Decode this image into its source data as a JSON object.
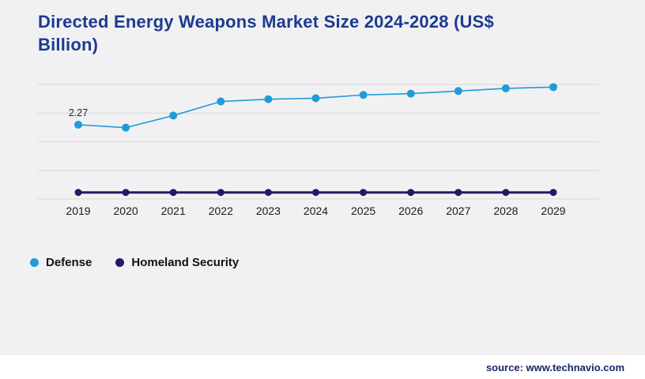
{
  "header": {
    "title": "Directed Energy Weapons Market Size 2024-2028 (US$ Billion)"
  },
  "chart_data": {
    "type": "line",
    "title": "Directed Energy Weapons Market Size 2024-2028 (US$ Billion)",
    "categories": [
      "2019",
      "2020",
      "2021",
      "2022",
      "2023",
      "2024",
      "2025",
      "2026",
      "2027",
      "2028",
      "2029"
    ],
    "series": [
      {
        "name": "Defense",
        "color": "#1f9bd7",
        "values": [
          2.27,
          2.18,
          2.55,
          2.98,
          3.05,
          3.08,
          3.18,
          3.22,
          3.3,
          3.38,
          3.42
        ]
      },
      {
        "name": "Homeland Security",
        "color": "#221a63",
        "values": [
          0.2,
          0.2,
          0.2,
          0.2,
          0.2,
          0.2,
          0.2,
          0.2,
          0.2,
          0.2,
          0.2
        ]
      }
    ],
    "xlabel": "",
    "ylabel": "",
    "ylim": [
      0,
      3.5
    ],
    "grid": true,
    "legend_position": "bottom-left",
    "data_labels": [
      {
        "series_index": 0,
        "point_index": 0,
        "label": "2.27"
      }
    ]
  },
  "footer": {
    "source": "source: www.technavio.com"
  }
}
